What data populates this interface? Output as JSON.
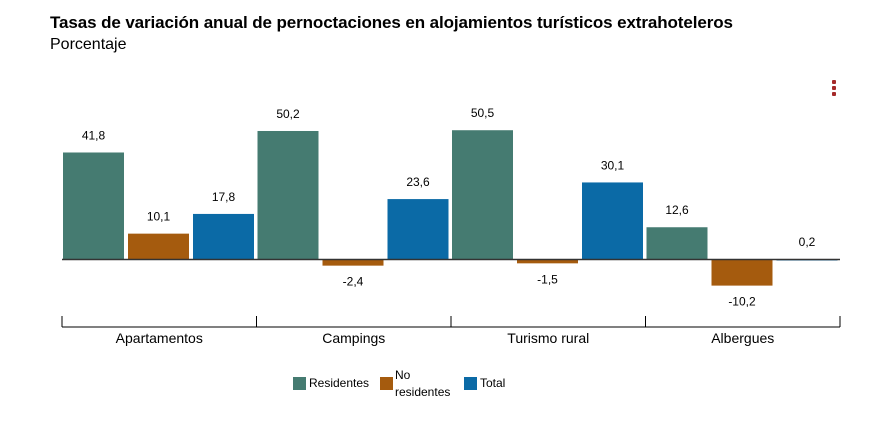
{
  "header": {
    "title": "Tasas de variación anual de pernoctaciones en alojamientos turísticos extrahoteleros",
    "subtitle": "Porcentaje"
  },
  "menu_icon": "kebab-menu-icon",
  "chart_data": {
    "type": "bar",
    "title": "Tasas de variación anual de pernoctaciones en alojamientos turísticos extrahoteleros",
    "subtitle": "Porcentaje",
    "categories": [
      "Apartamentos",
      "Campings",
      "Turismo rural",
      "Albergues"
    ],
    "series": [
      {
        "name": "Residentes",
        "color": "#457b71",
        "values": [
          41.8,
          50.2,
          50.5,
          12.6
        ],
        "labels": [
          "41,8",
          "50,2",
          "50,5",
          "12,6"
        ]
      },
      {
        "name": "No residentes",
        "color": "#a55b0e",
        "values": [
          10.1,
          -2.4,
          -1.5,
          -10.2
        ],
        "labels": [
          "10,1",
          "-2,4",
          "-1,5",
          "-10,2"
        ]
      },
      {
        "name": "Total",
        "color": "#0b6aa6",
        "values": [
          17.8,
          23.6,
          30.1,
          0.2
        ],
        "labels": [
          "17,8",
          "23,6",
          "30,1",
          "0,2"
        ]
      }
    ],
    "xlabel": "",
    "ylabel": "",
    "ylim": [
      -15,
      55
    ],
    "grid": false,
    "legend": {
      "position": "bottom",
      "entries": [
        "Residentes",
        "No residentes",
        "Total"
      ]
    }
  },
  "legend": {
    "items": [
      {
        "text_lines": [
          "Residentes"
        ]
      },
      {
        "text_lines": [
          "No",
          "residentes"
        ]
      },
      {
        "text_lines": [
          "Total"
        ]
      }
    ]
  }
}
